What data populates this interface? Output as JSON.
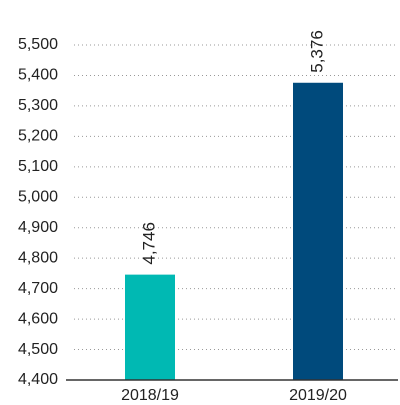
{
  "chart_data": {
    "type": "bar",
    "categories": [
      "2018/19",
      "2019/20"
    ],
    "values": [
      4746,
      5376
    ],
    "value_labels": [
      "4,746",
      "5,376"
    ],
    "colors": [
      "#00b9b3",
      "#004a7c"
    ],
    "ylim": [
      4400,
      5500
    ],
    "yticks": [
      {
        "value": 4400,
        "label": "4,400"
      },
      {
        "value": 4500,
        "label": "4,500"
      },
      {
        "value": 4600,
        "label": "4,600"
      },
      {
        "value": 4700,
        "label": "4,700"
      },
      {
        "value": 4800,
        "label": "4,800"
      },
      {
        "value": 4900,
        "label": "4,900"
      },
      {
        "value": 5000,
        "label": "5,000"
      },
      {
        "value": 5100,
        "label": "5,100"
      },
      {
        "value": 5200,
        "label": "5,200"
      },
      {
        "value": 5300,
        "label": "5,300"
      },
      {
        "value": 5400,
        "label": "5,400"
      },
      {
        "value": 5500,
        "label": "5,500"
      }
    ],
    "grid": true
  }
}
